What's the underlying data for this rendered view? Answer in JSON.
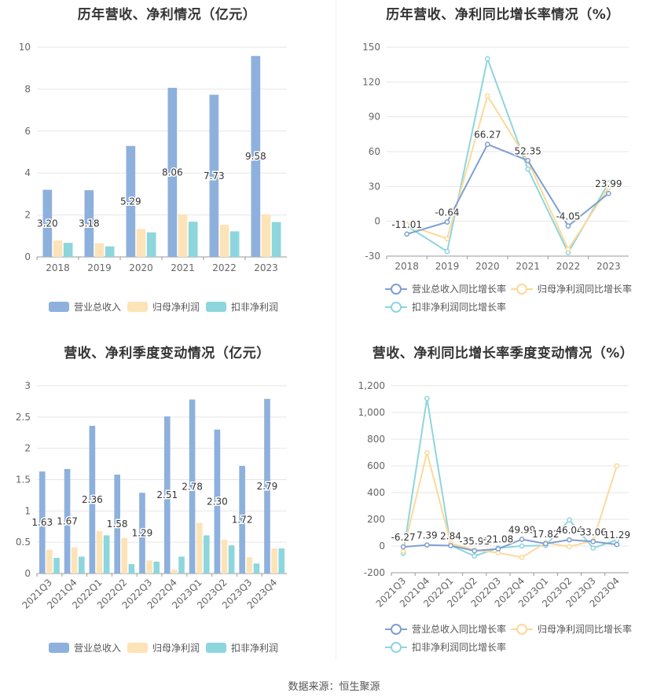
{
  "source_text": "数据来源：恒生聚源",
  "chart_data": [
    {
      "type": "bar",
      "title": "历年营收、净利情况（亿元）",
      "categories": [
        "2018",
        "2019",
        "2020",
        "2021",
        "2022",
        "2023"
      ],
      "ylim": [
        0,
        10
      ],
      "yticks": [
        "0",
        "2",
        "4",
        "6",
        "8",
        "10"
      ],
      "series": [
        {
          "name": "营业总收入",
          "color": "#8eb0dd",
          "values": [
            3.2,
            3.18,
            5.29,
            8.06,
            7.73,
            9.58
          ],
          "labels": [
            "3.20",
            "3.18",
            "5.29",
            "8.06",
            "7.73",
            "9.58"
          ]
        },
        {
          "name": "归母净利润",
          "color": "#fde3b8",
          "values": [
            0.78,
            0.65,
            1.33,
            2.03,
            1.53,
            2.03
          ]
        },
        {
          "name": "扣非净利润",
          "color": "#8dd6dd",
          "values": [
            0.67,
            0.5,
            1.17,
            1.68,
            1.22,
            1.66
          ]
        }
      ],
      "legend": "bottom"
    },
    {
      "type": "line",
      "title": "历年营收、净利同比增长率情况（%）",
      "categories": [
        "2018",
        "2019",
        "2020",
        "2021",
        "2022",
        "2023"
      ],
      "ylim": [
        -30,
        150
      ],
      "yticks": [
        "-30",
        "0",
        "30",
        "60",
        "90",
        "120",
        "150"
      ],
      "series": [
        {
          "name": "营业总收入同比增长率",
          "color": "#7f9fd0",
          "values": [
            -11.01,
            -0.64,
            66.27,
            52.35,
            -4.05,
            23.99
          ],
          "labels": [
            "-11.01",
            "-0.64",
            "66.27",
            "52.35",
            "-4.05",
            "23.99"
          ]
        },
        {
          "name": "归母净利润同比增长率",
          "color": "#fcd99a",
          "values": [
            -3,
            -15,
            108,
            52,
            -24,
            29
          ]
        },
        {
          "name": "扣非净利润同比增长率",
          "color": "#8dd6dd",
          "values": [
            -4,
            -26,
            140,
            45,
            -27,
            33
          ]
        }
      ],
      "legend": "bottom"
    },
    {
      "type": "bar",
      "title": "营收、净利季度变动情况（亿元）",
      "categories": [
        "2021Q3",
        "2021Q4",
        "2022Q1",
        "2022Q2",
        "2022Q3",
        "2022Q4",
        "2023Q1",
        "2023Q2",
        "2023Q3",
        "2023Q4"
      ],
      "ylim": [
        0,
        3
      ],
      "yticks": [
        "0",
        "0.5",
        "1",
        "1.5",
        "2",
        "2.5",
        "3"
      ],
      "series": [
        {
          "name": "营业总收入",
          "color": "#8eb0dd",
          "values": [
            1.63,
            1.67,
            2.36,
            1.58,
            1.29,
            2.51,
            2.78,
            2.3,
            1.72,
            2.79
          ],
          "labels": [
            "1.63",
            "1.67",
            "2.36",
            "1.58",
            "1.29",
            "2.51",
            "2.78",
            "2.30",
            "1.72",
            "2.79"
          ]
        },
        {
          "name": "归母净利润",
          "color": "#fde3b8",
          "values": [
            0.38,
            0.42,
            0.68,
            0.57,
            0.21,
            0.06,
            0.81,
            0.54,
            0.26,
            0.4
          ]
        },
        {
          "name": "扣非净利润",
          "color": "#8dd6dd",
          "values": [
            0.25,
            0.27,
            0.61,
            0.15,
            0.19,
            0.27,
            0.61,
            0.45,
            0.16,
            0.4
          ]
        }
      ],
      "legend": "bottom"
    },
    {
      "type": "line",
      "title": "营收、净利同比增长率季度变动情况（%）",
      "categories": [
        "2021Q3",
        "2021Q4",
        "2022Q1",
        "2022Q2",
        "2022Q3",
        "2022Q4",
        "2023Q1",
        "2023Q2",
        "2023Q3",
        "2023Q4"
      ],
      "ylim": [
        -200,
        1200
      ],
      "yticks": [
        "-200",
        "0",
        "200",
        "400",
        "600",
        "800",
        "1,000",
        "1,200"
      ],
      "series": [
        {
          "name": "营业总收入同比增长率",
          "color": "#7f9fd0",
          "values": [
            -6.27,
            7.39,
            2.84,
            -35.91,
            -21.08,
            49.99,
            17.82,
            46.04,
            33.06,
            11.29
          ],
          "labels": [
            "-6.27",
            "7.39",
            "2.84",
            "-35.91",
            "-21.08",
            "49.99",
            "17.82",
            "46.04",
            "33.06",
            "11.29"
          ]
        },
        {
          "name": "归母净利润同比增长率",
          "color": "#fcd99a",
          "values": [
            -40,
            700,
            20,
            -30,
            -50,
            -85,
            25,
            -5,
            40,
            600
          ]
        },
        {
          "name": "扣非净利润同比增长率",
          "color": "#8dd6dd",
          "values": [
            -55,
            1105,
            5,
            -75,
            -15,
            0,
            5,
            195,
            -15,
            45
          ]
        }
      ],
      "legend": "bottom"
    }
  ]
}
